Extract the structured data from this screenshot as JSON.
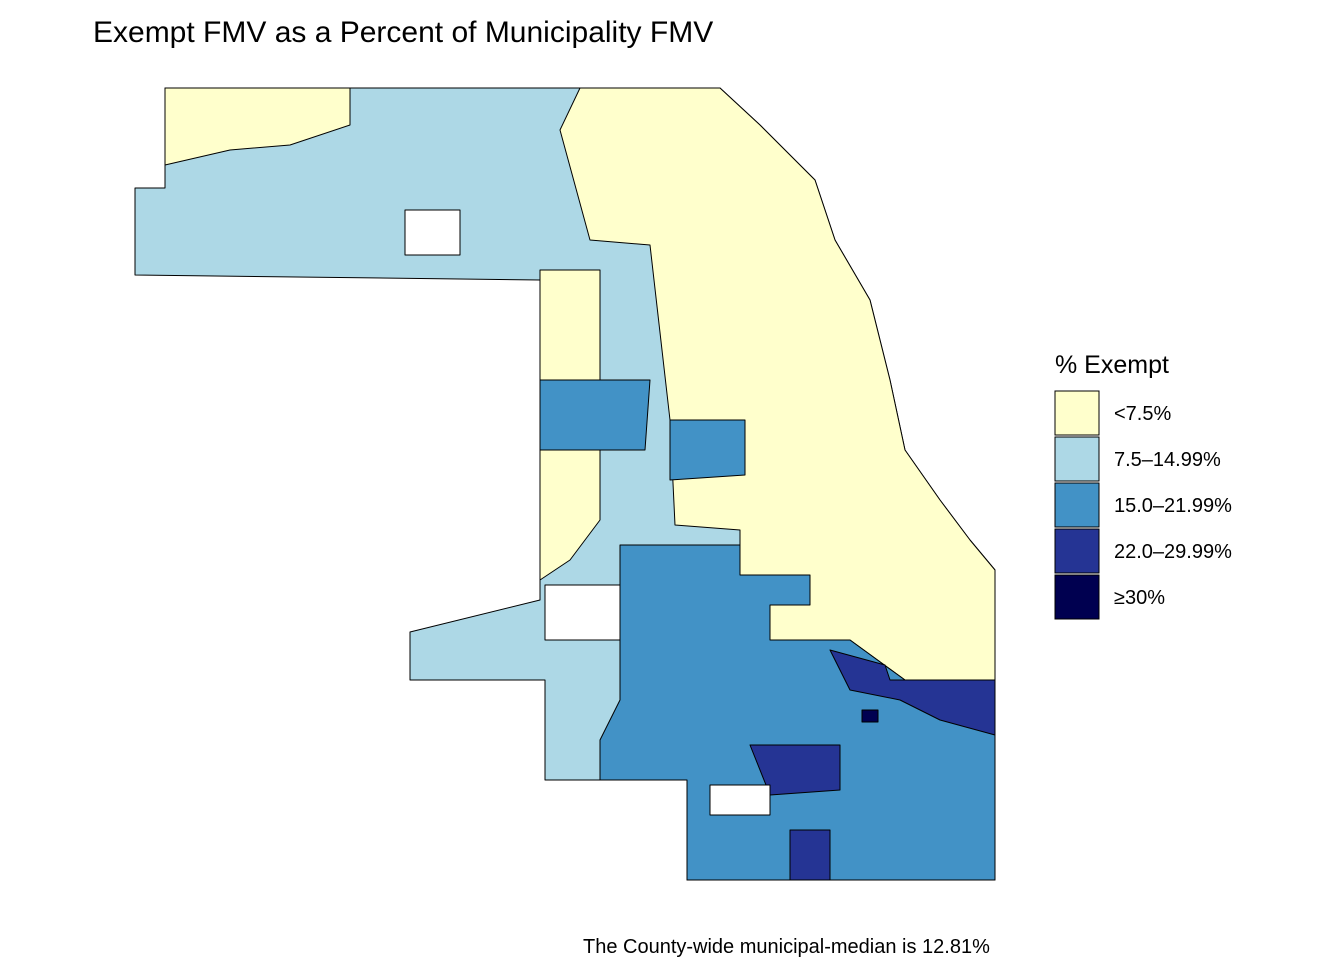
{
  "title": "Exempt FMV as a Percent of Municipality FMV",
  "legend": {
    "title": "% Exempt",
    "items": [
      {
        "label": "<7.5%",
        "color": "#ffffcc"
      },
      {
        "label": "7.5–14.99%",
        "color": "#add8e6"
      },
      {
        "label": "15.0–21.99%",
        "color": "#4292c6"
      },
      {
        "label": "22.0–29.99%",
        "color": "#253494"
      },
      {
        "label": "≥30%",
        "color": "#000050"
      }
    ]
  },
  "caption": "The County-wide municipal-median is 12.81%"
}
